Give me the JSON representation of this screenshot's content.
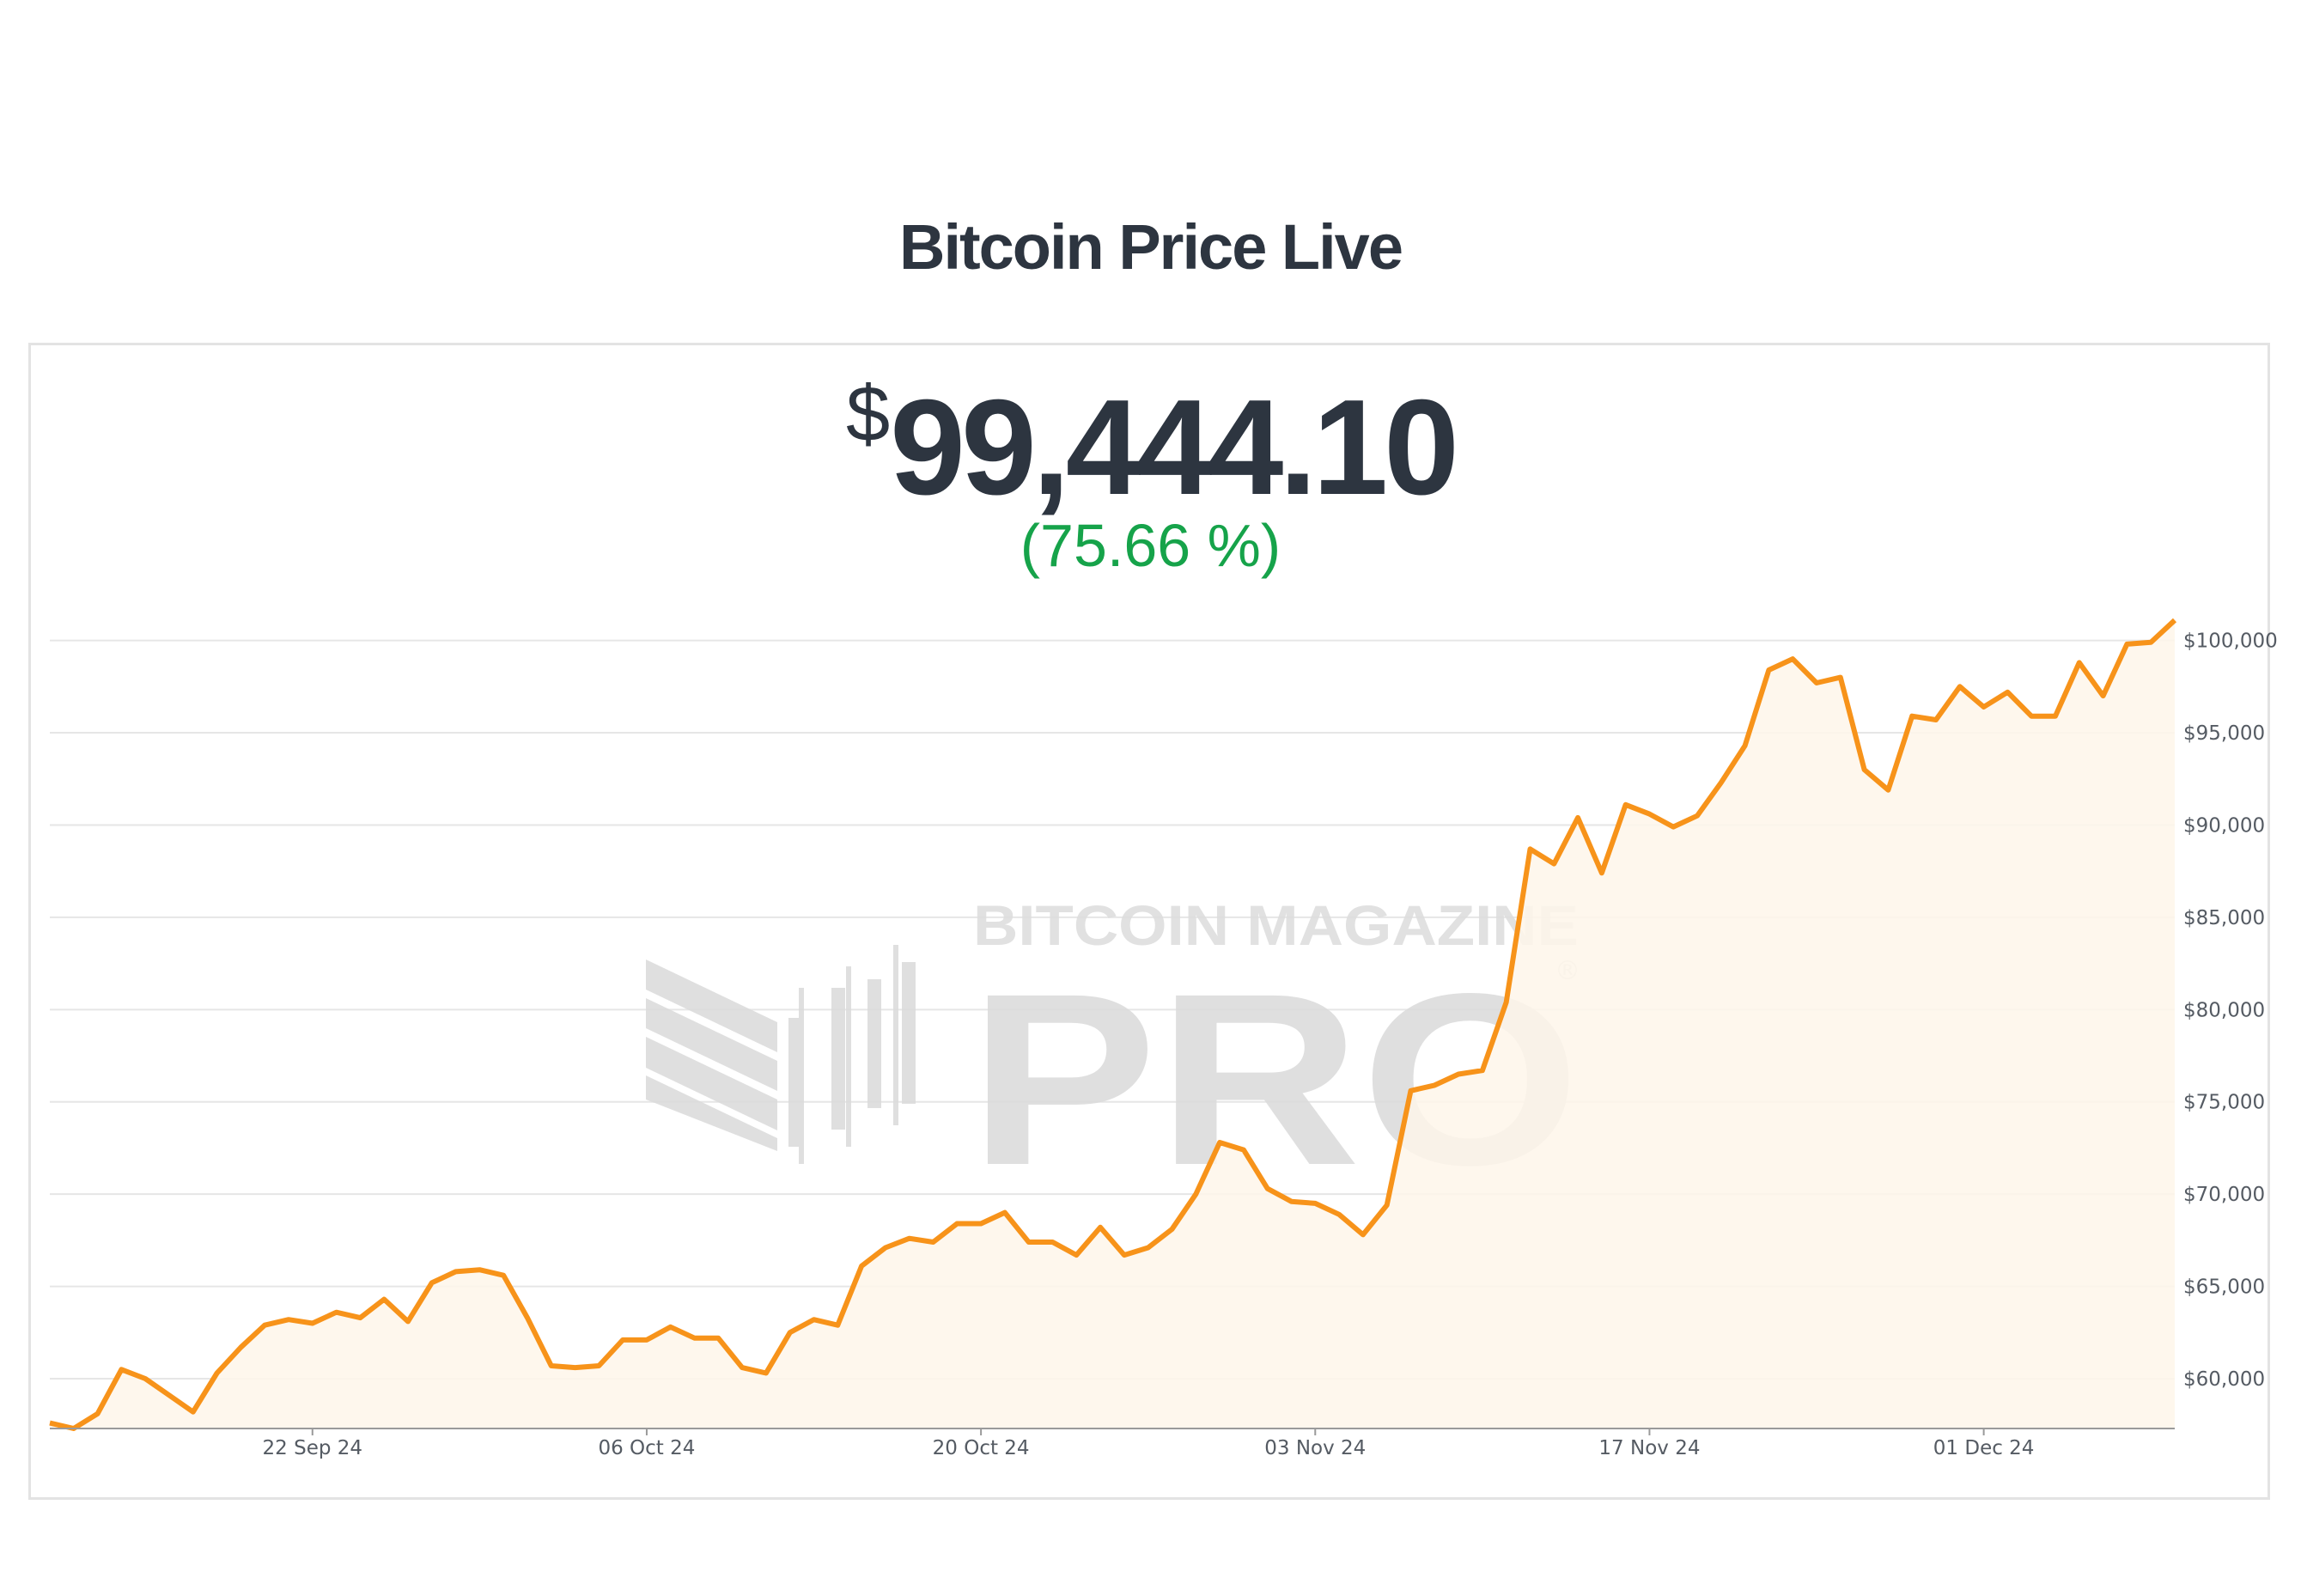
{
  "page": {
    "title": "Bitcoin Price Live"
  },
  "price": {
    "currency": "$",
    "value": "99,444.10",
    "change": "(75.66 %)"
  },
  "watermark": {
    "line1": "BITCOIN MAGAZINE",
    "line2": "PRO",
    "mark": "®"
  },
  "colors": {
    "line": "#f7931a",
    "area": "#fef6ea",
    "change": "#16a34a",
    "text": "#2d3540",
    "grid": "#e6e6e6"
  },
  "chart_data": {
    "type": "area",
    "title": "",
    "xlabel": "",
    "ylabel": "",
    "ylim": [
      57300,
      101100
    ],
    "y_ticks": [
      "$60,000",
      "$65,000",
      "$70,000",
      "$75,000",
      "$80,000",
      "$85,000",
      "$90,000",
      "$95,000",
      "$100,000"
    ],
    "y_tick_values": [
      60000,
      65000,
      70000,
      75000,
      80000,
      85000,
      90000,
      95000,
      100000
    ],
    "x_ticks": [
      "22 Sep 24",
      "06 Oct 24",
      "20 Oct 24",
      "03 Nov 24",
      "17 Nov 24",
      "01 Dec 24"
    ],
    "x_tick_dates": [
      "2024-09-22",
      "2024-10-06",
      "2024-10-20",
      "2024-11-03",
      "2024-11-17",
      "2024-12-01"
    ],
    "x_range": [
      "2024-09-11",
      "2024-12-09"
    ],
    "grid": true,
    "y_axis_position": "right",
    "series": [
      {
        "x": [
          "2024-09-11",
          "2024-09-12",
          "2024-09-13",
          "2024-09-14",
          "2024-09-15",
          "2024-09-16",
          "2024-09-17",
          "2024-09-18",
          "2024-09-19",
          "2024-09-20",
          "2024-09-21",
          "2024-09-22",
          "2024-09-23",
          "2024-09-24",
          "2024-09-25",
          "2024-09-26",
          "2024-09-27",
          "2024-09-28",
          "2024-09-29",
          "2024-09-30",
          "2024-10-01",
          "2024-10-02",
          "2024-10-03",
          "2024-10-04",
          "2024-10-05",
          "2024-10-06",
          "2024-10-07",
          "2024-10-08",
          "2024-10-09",
          "2024-10-10",
          "2024-10-11",
          "2024-10-12",
          "2024-10-13",
          "2024-10-14",
          "2024-10-15",
          "2024-10-16",
          "2024-10-17",
          "2024-10-18",
          "2024-10-19",
          "2024-10-20",
          "2024-10-21",
          "2024-10-22",
          "2024-10-23",
          "2024-10-24",
          "2024-10-25",
          "2024-10-26",
          "2024-10-27",
          "2024-10-28",
          "2024-10-29",
          "2024-10-30",
          "2024-10-31",
          "2024-11-01",
          "2024-11-02",
          "2024-11-03",
          "2024-11-04",
          "2024-11-05",
          "2024-11-06",
          "2024-11-07",
          "2024-11-08",
          "2024-11-09",
          "2024-11-10",
          "2024-11-11",
          "2024-11-12",
          "2024-11-13",
          "2024-11-14",
          "2024-11-15",
          "2024-11-16",
          "2024-11-17",
          "2024-11-18",
          "2024-11-19",
          "2024-11-20",
          "2024-11-21",
          "2024-11-22",
          "2024-11-23",
          "2024-11-24",
          "2024-11-25",
          "2024-11-26",
          "2024-11-27",
          "2024-11-28",
          "2024-11-29",
          "2024-11-30",
          "2024-12-01",
          "2024-12-02",
          "2024-12-03",
          "2024-12-04",
          "2024-12-05",
          "2024-12-06",
          "2024-12-07",
          "2024-12-08",
          "2024-12-09"
        ],
        "values": [
          57600,
          57300,
          58100,
          60500,
          60000,
          59100,
          58200,
          60300,
          61700,
          62900,
          63200,
          63000,
          63600,
          63300,
          64300,
          63100,
          65200,
          65800,
          65900,
          65600,
          63300,
          60700,
          60600,
          60700,
          62100,
          62100,
          62800,
          62200,
          62200,
          60600,
          60300,
          62500,
          63200,
          62900,
          66100,
          67100,
          67600,
          67400,
          68400,
          68400,
          69000,
          67400,
          67400,
          66700,
          68200,
          66700,
          67100,
          68100,
          70000,
          72800,
          72400,
          70300,
          69600,
          69500,
          68900,
          67800,
          69400,
          75600,
          75900,
          76500,
          76700,
          80400,
          88700,
          87900,
          90400,
          87400,
          91100,
          90600,
          89900,
          90500,
          92300,
          94300,
          98400,
          99000,
          97700,
          98000,
          93000,
          91900,
          95900,
          95700,
          97500,
          96400,
          97200,
          95900,
          95900,
          98800,
          97000,
          99800,
          99900,
          101100
        ]
      }
    ]
  }
}
